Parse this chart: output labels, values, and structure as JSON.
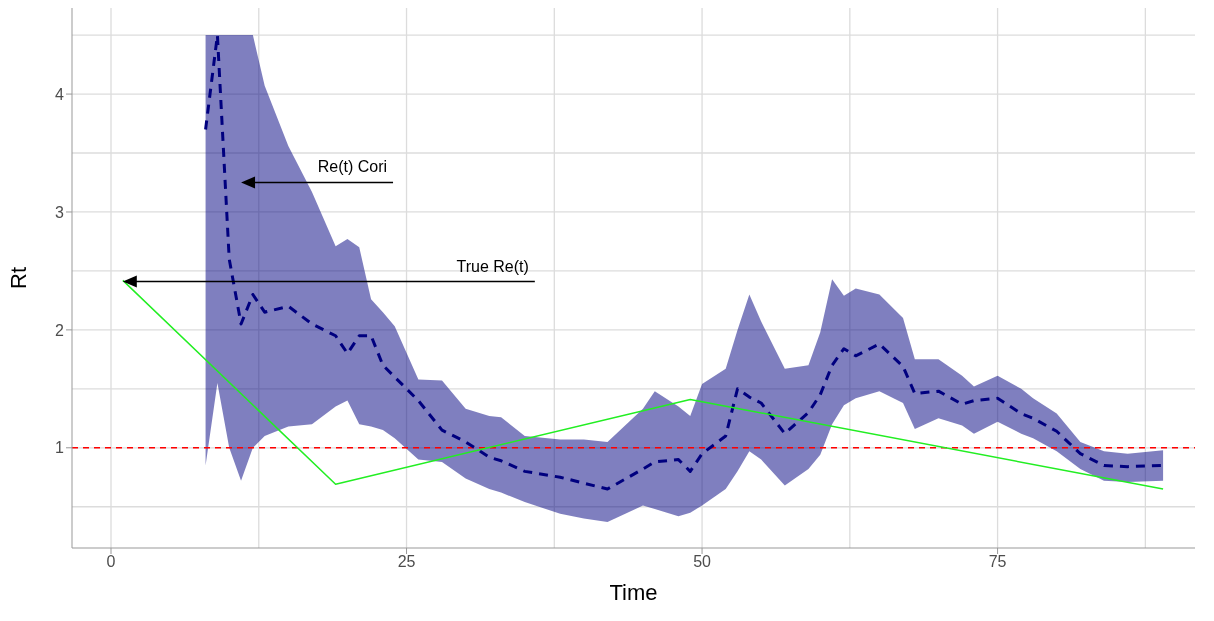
{
  "chart_data": {
    "type": "line",
    "xlabel": "Time",
    "ylabel": "Rt",
    "xlim": [
      -3.3,
      91.7
    ],
    "ylim": [
      0.15,
      4.73
    ],
    "xticks": [
      0,
      25,
      50,
      75
    ],
    "yticks": [
      1,
      2,
      3,
      4
    ],
    "grid": true,
    "series": [
      {
        "color": "#00007f",
        "line_style": "dashed",
        "x": [
          8,
          9,
          10,
          11,
          12,
          13,
          15,
          17,
          19,
          20,
          21,
          22,
          23,
          24,
          26,
          28,
          30,
          32,
          33,
          35,
          38,
          40,
          42,
          45,
          46,
          48,
          49,
          50,
          52,
          53,
          54,
          55,
          57,
          59,
          60,
          61,
          62,
          63,
          65,
          67,
          68,
          70,
          72,
          73,
          75,
          77,
          78,
          80,
          82,
          84,
          86,
          89
        ],
        "values": [
          3.7,
          4.5,
          2.6,
          2.05,
          2.3,
          2.15,
          2.2,
          2.05,
          1.95,
          1.8,
          1.95,
          1.95,
          1.7,
          1.6,
          1.4,
          1.15,
          1.05,
          0.92,
          0.89,
          0.8,
          0.75,
          0.7,
          0.65,
          0.82,
          0.88,
          0.9,
          0.8,
          0.95,
          1.1,
          1.5,
          1.43,
          1.38,
          1.12,
          1.3,
          1.45,
          1.7,
          1.84,
          1.78,
          1.88,
          1.69,
          1.46,
          1.48,
          1.37,
          1.4,
          1.42,
          1.29,
          1.25,
          1.14,
          0.95,
          0.85,
          0.84,
          0.85
        ],
        "lower": [
          0.85,
          1.55,
          1.0,
          0.72,
          1.0,
          1.1,
          1.18,
          1.2,
          1.35,
          1.4,
          1.2,
          1.18,
          1.15,
          1.08,
          0.9,
          0.88,
          0.74,
          0.65,
          0.62,
          0.54,
          0.44,
          0.4,
          0.37,
          0.51,
          0.48,
          0.42,
          0.45,
          0.51,
          0.65,
          0.8,
          0.97,
          0.9,
          0.68,
          0.82,
          0.94,
          1.2,
          1.36,
          1.42,
          1.48,
          1.38,
          1.16,
          1.25,
          1.19,
          1.12,
          1.22,
          1.12,
          1.08,
          0.97,
          0.82,
          0.72,
          0.71,
          0.72
        ],
        "upper": [
          4.5,
          4.5,
          4.5,
          4.5,
          4.5,
          4.07,
          3.56,
          3.17,
          2.71,
          2.77,
          2.7,
          2.26,
          2.15,
          2.03,
          1.58,
          1.57,
          1.33,
          1.27,
          1.26,
          1.1,
          1.07,
          1.07,
          1.05,
          1.33,
          1.48,
          1.35,
          1.27,
          1.54,
          1.67,
          2.0,
          2.3,
          2.07,
          1.67,
          1.7,
          1.98,
          2.43,
          2.29,
          2.35,
          2.3,
          2.1,
          1.75,
          1.75,
          1.61,
          1.52,
          1.61,
          1.5,
          1.42,
          1.29,
          1.05,
          0.97,
          0.95,
          0.98
        ]
      },
      {
        "color": "#22ee22",
        "line_style": "solid",
        "x": [
          1,
          19,
          49,
          89
        ],
        "values": [
          2.42,
          0.69,
          1.41,
          0.65
        ]
      }
    ],
    "ref_lines": [
      {
        "axis": "y",
        "value": 1,
        "color": "#ff0000",
        "line_style": "dashed"
      }
    ],
    "annotations": [
      "Re(t) Cori",
      "True Re(t)"
    ]
  }
}
